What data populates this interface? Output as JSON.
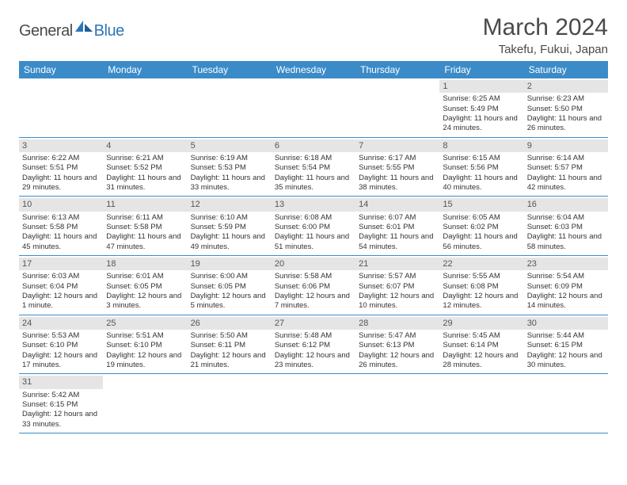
{
  "logo": {
    "part1": "General",
    "part2": "Blue"
  },
  "title": "March 2024",
  "location": "Takefu, Fukui, Japan",
  "colors": {
    "header_bg": "#3b8bc9",
    "header_text": "#ffffff",
    "daynum_bg": "#e5e5e5",
    "border": "#3b8bc9",
    "body_text": "#333333",
    "title_text": "#4a4a4a",
    "logo_blue": "#2e75b6"
  },
  "weekdays": [
    "Sunday",
    "Monday",
    "Tuesday",
    "Wednesday",
    "Thursday",
    "Friday",
    "Saturday"
  ],
  "weeks": [
    [
      null,
      null,
      null,
      null,
      null,
      {
        "n": "1",
        "sunrise": "Sunrise: 6:25 AM",
        "sunset": "Sunset: 5:49 PM",
        "daylight": "Daylight: 11 hours and 24 minutes."
      },
      {
        "n": "2",
        "sunrise": "Sunrise: 6:23 AM",
        "sunset": "Sunset: 5:50 PM",
        "daylight": "Daylight: 11 hours and 26 minutes."
      }
    ],
    [
      {
        "n": "3",
        "sunrise": "Sunrise: 6:22 AM",
        "sunset": "Sunset: 5:51 PM",
        "daylight": "Daylight: 11 hours and 29 minutes."
      },
      {
        "n": "4",
        "sunrise": "Sunrise: 6:21 AM",
        "sunset": "Sunset: 5:52 PM",
        "daylight": "Daylight: 11 hours and 31 minutes."
      },
      {
        "n": "5",
        "sunrise": "Sunrise: 6:19 AM",
        "sunset": "Sunset: 5:53 PM",
        "daylight": "Daylight: 11 hours and 33 minutes."
      },
      {
        "n": "6",
        "sunrise": "Sunrise: 6:18 AM",
        "sunset": "Sunset: 5:54 PM",
        "daylight": "Daylight: 11 hours and 35 minutes."
      },
      {
        "n": "7",
        "sunrise": "Sunrise: 6:17 AM",
        "sunset": "Sunset: 5:55 PM",
        "daylight": "Daylight: 11 hours and 38 minutes."
      },
      {
        "n": "8",
        "sunrise": "Sunrise: 6:15 AM",
        "sunset": "Sunset: 5:56 PM",
        "daylight": "Daylight: 11 hours and 40 minutes."
      },
      {
        "n": "9",
        "sunrise": "Sunrise: 6:14 AM",
        "sunset": "Sunset: 5:57 PM",
        "daylight": "Daylight: 11 hours and 42 minutes."
      }
    ],
    [
      {
        "n": "10",
        "sunrise": "Sunrise: 6:13 AM",
        "sunset": "Sunset: 5:58 PM",
        "daylight": "Daylight: 11 hours and 45 minutes."
      },
      {
        "n": "11",
        "sunrise": "Sunrise: 6:11 AM",
        "sunset": "Sunset: 5:58 PM",
        "daylight": "Daylight: 11 hours and 47 minutes."
      },
      {
        "n": "12",
        "sunrise": "Sunrise: 6:10 AM",
        "sunset": "Sunset: 5:59 PM",
        "daylight": "Daylight: 11 hours and 49 minutes."
      },
      {
        "n": "13",
        "sunrise": "Sunrise: 6:08 AM",
        "sunset": "Sunset: 6:00 PM",
        "daylight": "Daylight: 11 hours and 51 minutes."
      },
      {
        "n": "14",
        "sunrise": "Sunrise: 6:07 AM",
        "sunset": "Sunset: 6:01 PM",
        "daylight": "Daylight: 11 hours and 54 minutes."
      },
      {
        "n": "15",
        "sunrise": "Sunrise: 6:05 AM",
        "sunset": "Sunset: 6:02 PM",
        "daylight": "Daylight: 11 hours and 56 minutes."
      },
      {
        "n": "16",
        "sunrise": "Sunrise: 6:04 AM",
        "sunset": "Sunset: 6:03 PM",
        "daylight": "Daylight: 11 hours and 58 minutes."
      }
    ],
    [
      {
        "n": "17",
        "sunrise": "Sunrise: 6:03 AM",
        "sunset": "Sunset: 6:04 PM",
        "daylight": "Daylight: 12 hours and 1 minute."
      },
      {
        "n": "18",
        "sunrise": "Sunrise: 6:01 AM",
        "sunset": "Sunset: 6:05 PM",
        "daylight": "Daylight: 12 hours and 3 minutes."
      },
      {
        "n": "19",
        "sunrise": "Sunrise: 6:00 AM",
        "sunset": "Sunset: 6:05 PM",
        "daylight": "Daylight: 12 hours and 5 minutes."
      },
      {
        "n": "20",
        "sunrise": "Sunrise: 5:58 AM",
        "sunset": "Sunset: 6:06 PM",
        "daylight": "Daylight: 12 hours and 7 minutes."
      },
      {
        "n": "21",
        "sunrise": "Sunrise: 5:57 AM",
        "sunset": "Sunset: 6:07 PM",
        "daylight": "Daylight: 12 hours and 10 minutes."
      },
      {
        "n": "22",
        "sunrise": "Sunrise: 5:55 AM",
        "sunset": "Sunset: 6:08 PM",
        "daylight": "Daylight: 12 hours and 12 minutes."
      },
      {
        "n": "23",
        "sunrise": "Sunrise: 5:54 AM",
        "sunset": "Sunset: 6:09 PM",
        "daylight": "Daylight: 12 hours and 14 minutes."
      }
    ],
    [
      {
        "n": "24",
        "sunrise": "Sunrise: 5:53 AM",
        "sunset": "Sunset: 6:10 PM",
        "daylight": "Daylight: 12 hours and 17 minutes."
      },
      {
        "n": "25",
        "sunrise": "Sunrise: 5:51 AM",
        "sunset": "Sunset: 6:10 PM",
        "daylight": "Daylight: 12 hours and 19 minutes."
      },
      {
        "n": "26",
        "sunrise": "Sunrise: 5:50 AM",
        "sunset": "Sunset: 6:11 PM",
        "daylight": "Daylight: 12 hours and 21 minutes."
      },
      {
        "n": "27",
        "sunrise": "Sunrise: 5:48 AM",
        "sunset": "Sunset: 6:12 PM",
        "daylight": "Daylight: 12 hours and 23 minutes."
      },
      {
        "n": "28",
        "sunrise": "Sunrise: 5:47 AM",
        "sunset": "Sunset: 6:13 PM",
        "daylight": "Daylight: 12 hours and 26 minutes."
      },
      {
        "n": "29",
        "sunrise": "Sunrise: 5:45 AM",
        "sunset": "Sunset: 6:14 PM",
        "daylight": "Daylight: 12 hours and 28 minutes."
      },
      {
        "n": "30",
        "sunrise": "Sunrise: 5:44 AM",
        "sunset": "Sunset: 6:15 PM",
        "daylight": "Daylight: 12 hours and 30 minutes."
      }
    ],
    [
      {
        "n": "31",
        "sunrise": "Sunrise: 5:42 AM",
        "sunset": "Sunset: 6:15 PM",
        "daylight": "Daylight: 12 hours and 33 minutes."
      },
      null,
      null,
      null,
      null,
      null,
      null
    ]
  ]
}
